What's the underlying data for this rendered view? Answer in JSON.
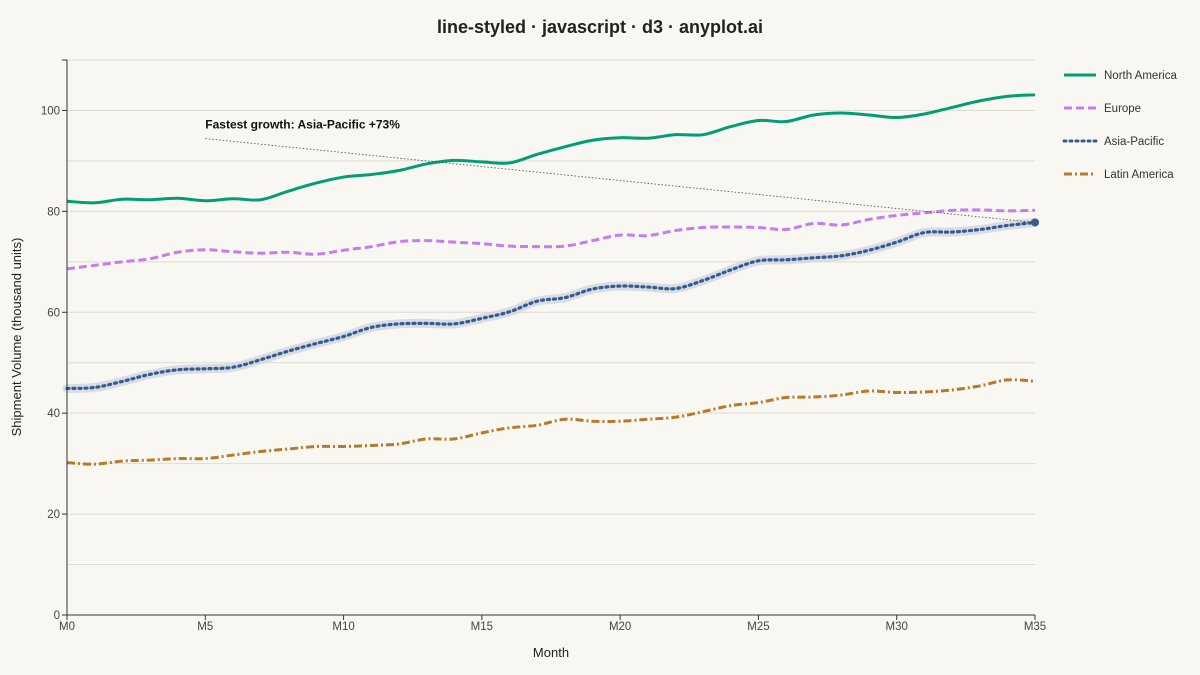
{
  "title": "line-styled · javascript · d3 · anyplot.ai",
  "chart_data": {
    "type": "line",
    "title": "line-styled · javascript · d3 · anyplot.ai",
    "xlabel": "Month",
    "ylabel": "Shipment Volume (thousand units)",
    "x_ticks": [
      "M0",
      "M5",
      "M10",
      "M15",
      "M20",
      "M25",
      "M30",
      "M35"
    ],
    "x_range": [
      0,
      35
    ],
    "ylim": [
      0,
      110
    ],
    "y_ticks": [
      0,
      20,
      40,
      60,
      80,
      100
    ],
    "grid": "horizontal, every 10",
    "legend_position": "right",
    "x": [
      0,
      1,
      2,
      3,
      4,
      5,
      6,
      7,
      8,
      9,
      10,
      11,
      12,
      13,
      14,
      15,
      16,
      17,
      18,
      19,
      20,
      21,
      22,
      23,
      24,
      25,
      26,
      27,
      28,
      29,
      30,
      31,
      32,
      33,
      34,
      35
    ],
    "series": [
      {
        "name": "North America",
        "style": "solid",
        "color": "#009e73",
        "values": [
          82,
          81.7,
          82.4,
          82.3,
          82.6,
          82.1,
          82.5,
          82.3,
          84,
          85.6,
          86.8,
          87.3,
          88.1,
          89.4,
          90.1,
          89.8,
          89.6,
          91.3,
          92.8,
          94.1,
          94.6,
          94.5,
          95.2,
          95.2,
          96.8,
          98,
          97.8,
          99.1,
          99.5,
          99.1,
          98.6,
          99.3,
          100.6,
          101.9,
          102.8,
          103.1
        ]
      },
      {
        "name": "Europe",
        "style": "dashed",
        "color": "#c67cf0",
        "values": [
          68.6,
          69.3,
          70,
          70.6,
          71.9,
          72.4,
          72,
          71.7,
          71.9,
          71.5,
          72.3,
          73,
          74,
          74.2,
          73.9,
          73.6,
          73.1,
          73,
          73.1,
          74.2,
          75.3,
          75.2,
          76.2,
          76.8,
          76.9,
          76.8,
          76.4,
          77.6,
          77.3,
          78.4,
          79.2,
          79.7,
          80.2,
          80.3,
          80.1,
          80.2
        ]
      },
      {
        "name": "Asia-Pacific",
        "style": "dotted",
        "color": "#3a5a8c",
        "values": [
          44.9,
          45.1,
          46.3,
          47.7,
          48.6,
          48.8,
          49.1,
          50.6,
          52.3,
          53.8,
          55.2,
          57,
          57.7,
          57.8,
          57.7,
          58.8,
          60.1,
          62.2,
          62.9,
          64.6,
          65.2,
          65,
          64.7,
          66.3,
          68.4,
          70.2,
          70.4,
          70.8,
          71.2,
          72.3,
          73.9,
          75.8,
          75.9,
          76.4,
          77.2,
          77.8
        ]
      },
      {
        "name": "Latin America",
        "style": "dashdot",
        "color": "#b8792c",
        "values": [
          30.2,
          29.9,
          30.5,
          30.7,
          31,
          31,
          31.7,
          32.4,
          32.9,
          33.4,
          33.4,
          33.6,
          33.9,
          34.9,
          34.9,
          36.1,
          37.1,
          37.6,
          38.8,
          38.4,
          38.4,
          38.8,
          39.2,
          40.3,
          41.5,
          42.1,
          43.1,
          43.2,
          43.6,
          44.4,
          44.1,
          44.2,
          44.6,
          45.4,
          46.6,
          46.3
        ]
      }
    ],
    "annotations": [
      {
        "text": "Fastest growth: Asia-Pacific +73%",
        "x": 5,
        "y": 97.2,
        "target_x": 35,
        "target_y": 77.8
      }
    ]
  }
}
